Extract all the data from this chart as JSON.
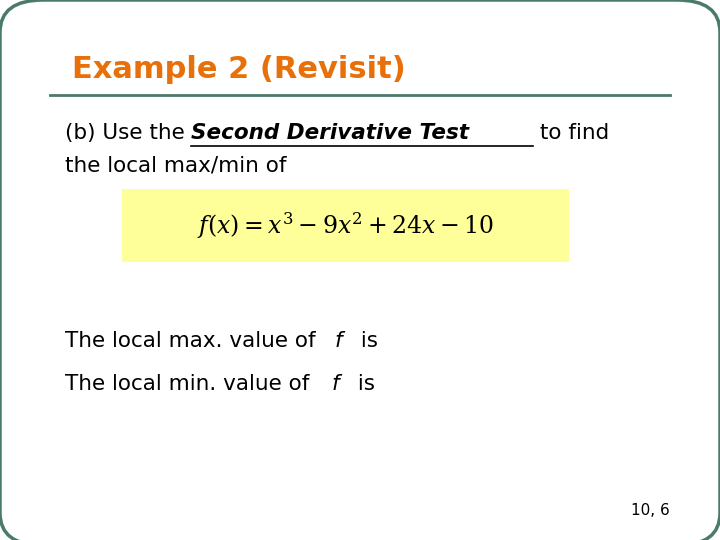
{
  "title": "Example 2 (Revisit)",
  "title_color": "#E8700A",
  "border_color": "#4A7A6A",
  "background_color": "#FFFFFF",
  "line_color": "#4A7A6A",
  "text_color": "#000000",
  "formula_bg": "#FFFF99",
  "slide_number": "10, 6",
  "body_text_1a": "(b) Use the ",
  "body_text_1b": "Second Derivative Test",
  "body_text_1c": " to find",
  "body_text_2": "the local max/min of",
  "formula": "$f(x) = x^3 - 9x^2 + 24x - 10$",
  "bottom_text_1a": "The local max. value of ",
  "bottom_text_1b": "f",
  "bottom_text_1c": " is",
  "bottom_text_2a": "The local min. value of ",
  "bottom_text_2b": "f",
  "bottom_text_2c": " is",
  "figsize": [
    7.2,
    5.4
  ],
  "dpi": 100
}
